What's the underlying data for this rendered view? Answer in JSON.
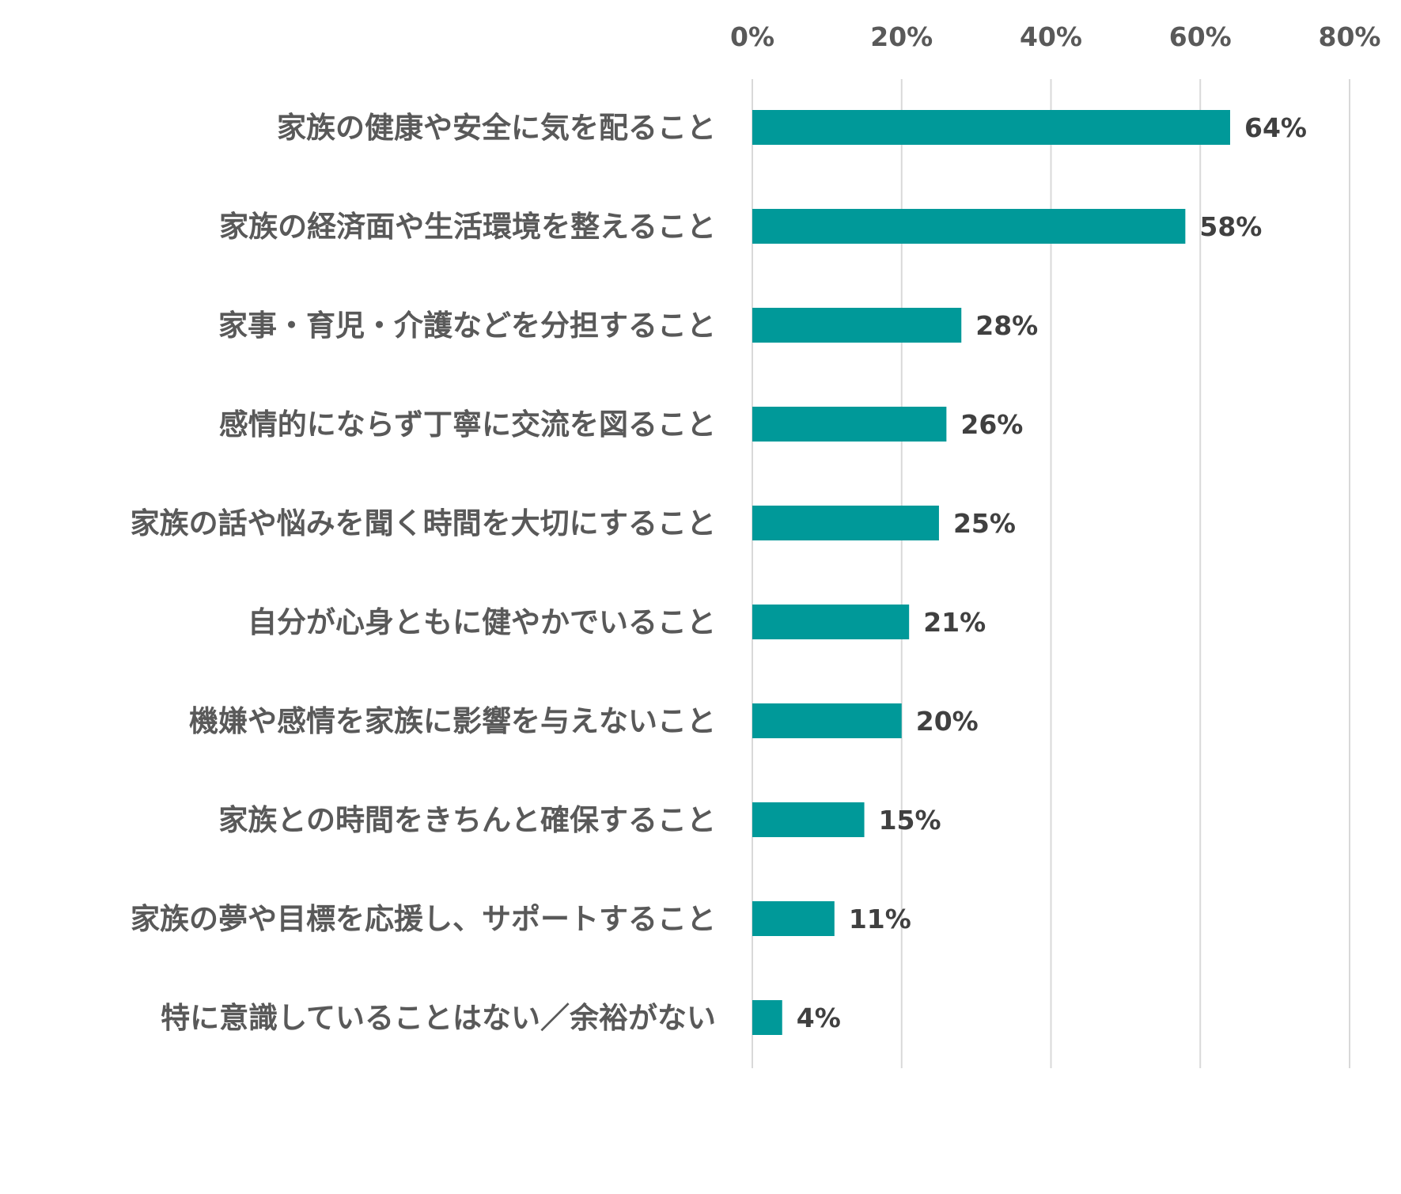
{
  "chart_data": {
    "type": "bar",
    "orientation": "horizontal",
    "categories": [
      "家族の健康や安全に気を配ること",
      "家族の経済面や生活環境を整えること",
      "家事・育児・介護などを分担すること",
      "感情的にならず丁寧に交流を図ること",
      "家族の話や悩みを聞く時間を大切にすること",
      "自分が心身ともに健やかでいること",
      "機嫌や感情を家族に影響を与えないこと",
      "家族との時間をきちんと確保すること",
      "家族の夢や目標を応援し、サポートすること",
      "特に意識していることはない／余裕がない"
    ],
    "values": [
      64,
      58,
      28,
      26,
      25,
      21,
      20,
      15,
      11,
      4
    ],
    "value_labels": [
      "64%",
      "58%",
      "28%",
      "26%",
      "25%",
      "21%",
      "20%",
      "15%",
      "11%",
      "4%"
    ],
    "x_ticks": [
      0,
      20,
      40,
      60,
      80
    ],
    "x_tick_labels": [
      "0%",
      "20%",
      "40%",
      "60%",
      "80%"
    ],
    "xlim": [
      0,
      80
    ],
    "x_axis_position": "top",
    "grid": true,
    "legend": "none",
    "bar_color": "#009999",
    "title": "",
    "xlabel": "",
    "ylabel": ""
  }
}
